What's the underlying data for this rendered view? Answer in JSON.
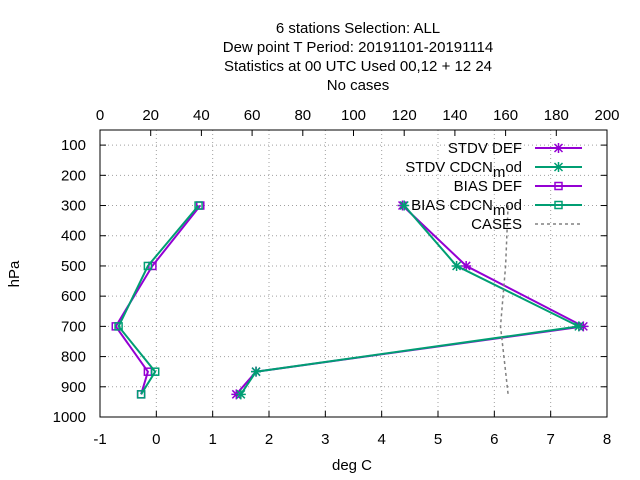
{
  "chart_data": {
    "type": "line",
    "title_lines": [
      "6 stations Selection: ALL",
      "Dew point T  Period: 20191101-20191114",
      "Statistics at 00 UTC  Used  00,12  + 12 24",
      "No cases"
    ],
    "xlabel": "deg C",
    "ylabel": "hPa",
    "xlim": [
      -1,
      8
    ],
    "x_ticks": [
      "-1",
      "0",
      "1",
      "2",
      "3",
      "4",
      "5",
      "6",
      "7",
      "8"
    ],
    "x2lim": [
      0,
      200
    ],
    "x2_ticks": [
      "0",
      "20",
      "40",
      "60",
      "80",
      "100",
      "120",
      "140",
      "160",
      "180",
      "200"
    ],
    "ylim": [
      1000,
      50
    ],
    "y_ticks": [
      "100",
      "200",
      "300",
      "400",
      "500",
      "600",
      "700",
      "800",
      "900",
      "1000"
    ],
    "grid": true,
    "legend_position": "top-right",
    "series": [
      {
        "name": "STDV DEF",
        "color": "#9400d3",
        "marker": "x-star",
        "points": [
          [
            4.37,
            300
          ],
          [
            5.5,
            500
          ],
          [
            7.58,
            700
          ],
          [
            1.77,
            850
          ],
          [
            1.42,
            925
          ]
        ]
      },
      {
        "name": "STDV CDCN_mod",
        "color": "#009e73",
        "marker": "x-star",
        "points": [
          [
            4.4,
            300
          ],
          [
            5.33,
            500
          ],
          [
            7.5,
            700
          ],
          [
            1.77,
            850
          ],
          [
            1.5,
            925
          ]
        ]
      },
      {
        "name": "BIAS DEF",
        "color": "#9400d3",
        "marker": "square",
        "points": [
          [
            0.78,
            300
          ],
          [
            -0.07,
            500
          ],
          [
            -0.72,
            700
          ],
          [
            -0.15,
            850
          ],
          [
            -0.27,
            925
          ]
        ]
      },
      {
        "name": "BIAS CDCN_mod",
        "color": "#009e73",
        "marker": "square",
        "points": [
          [
            0.75,
            300
          ],
          [
            -0.15,
            500
          ],
          [
            -0.67,
            700
          ],
          [
            -0.02,
            850
          ],
          [
            -0.27,
            925
          ]
        ]
      },
      {
        "name": "CASES",
        "color": "#808080",
        "marker": "none",
        "axis": "x2",
        "points": [
          [
            161,
            300
          ],
          [
            160,
            500
          ],
          [
            158,
            700
          ],
          [
            160,
            850
          ],
          [
            161,
            925
          ]
        ]
      }
    ]
  }
}
